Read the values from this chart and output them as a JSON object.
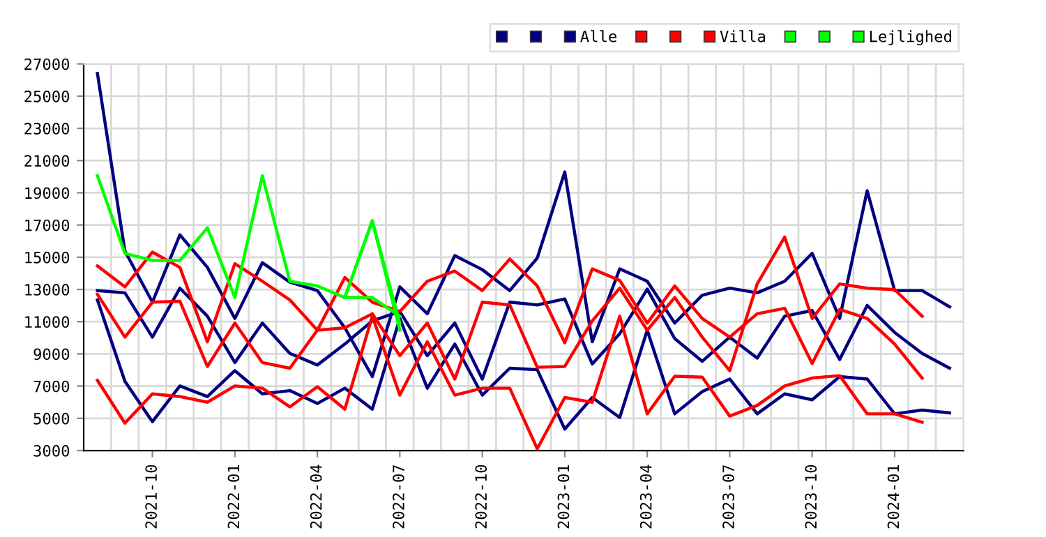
{
  "chart_data": {
    "type": "line",
    "categories": [
      null,
      null,
      "2021-10",
      null,
      null,
      "2022-01",
      null,
      null,
      "2022-04",
      null,
      null,
      "2022-07",
      null,
      null,
      "2022-10",
      null,
      null,
      "2023-01",
      null,
      null,
      "2023-04",
      null,
      null,
      "2023-07",
      null,
      null,
      "2023-10",
      null,
      null,
      "2024-01",
      null,
      null
    ],
    "series": [
      {
        "color": "#000080",
        "values": [
          26410,
          15380,
          12210,
          16390,
          14370,
          11200,
          14660,
          13450,
          12930,
          10620,
          7590,
          13160,
          11490,
          15100,
          14230,
          12930,
          14950,
          20290,
          9750,
          14280,
          13510,
          10910,
          12640,
          13080,
          12790,
          13510,
          15240,
          11200,
          19130,
          12930,
          12930,
          11920
        ]
      },
      {
        "color": "#000080",
        "values": [
          12930,
          12790,
          10040,
          13080,
          11340,
          8460,
          10910,
          9030,
          8310,
          9610,
          11050,
          11630,
          8890,
          10910,
          7440,
          12210,
          12040,
          12410,
          8370,
          10250,
          13020,
          9950,
          8540,
          10040,
          8740,
          11340,
          11690,
          8650,
          12010,
          10330,
          9030,
          8110
        ]
      },
      {
        "name": "Alle",
        "color": "#000080",
        "values": [
          12350,
          7300,
          4790,
          7010,
          6350,
          7960,
          6520,
          6720,
          5920,
          6870,
          5570,
          11200,
          6870,
          9610,
          6440,
          8110,
          8020,
          4330,
          6290,
          5050,
          10470,
          5280,
          6660,
          7440,
          5280,
          6520,
          6150,
          7590,
          7440,
          5280,
          5510,
          5340
        ]
      },
      {
        "color": "#ff0000",
        "values": [
          14460,
          13160,
          15320,
          14370,
          9750,
          14600,
          13510,
          12350,
          10470,
          13740,
          12210,
          11630,
          13510,
          14140,
          12930,
          14890,
          13220,
          9690,
          14280,
          13560,
          10910,
          13220,
          11200,
          10040,
          11490,
          11830,
          8400,
          11760,
          11200,
          9610,
          7500,
          null
        ]
      },
      {
        "color": "#ff0000",
        "values": [
          12700,
          10040,
          12210,
          12270,
          8220,
          10910,
          8460,
          8110,
          10470,
          10620,
          11490,
          8890,
          10910,
          7440,
          12210,
          12040,
          8170,
          8220,
          11050,
          13080,
          10470,
          12500,
          10040,
          7960,
          13340,
          16250,
          11200,
          13340,
          13080,
          12990,
          11340,
          null
        ]
      },
      {
        "name": "Villa",
        "color": "#ff0000",
        "values": [
          7360,
          4700,
          6520,
          6350,
          6000,
          7010,
          6870,
          5710,
          6960,
          5570,
          11340,
          6440,
          9750,
          6440,
          6870,
          6870,
          3110,
          6290,
          6000,
          11340,
          5280,
          7610,
          7560,
          5140,
          5800,
          7010,
          7500,
          7650,
          5280,
          5280,
          4760,
          null
        ]
      },
      {
        "color": "#00ff00",
        "values": [
          null,
          null,
          null,
          null,
          null,
          null,
          null,
          null,
          null,
          12500,
          12500,
          11340,
          null,
          null,
          null,
          null,
          null,
          null,
          null,
          null,
          null,
          null,
          null,
          null,
          null,
          null,
          null,
          null,
          null,
          null,
          null,
          null
        ]
      },
      {
        "color": "#00ff00",
        "values": [
          null,
          null,
          null,
          null,
          null,
          null,
          null,
          null,
          null,
          12500,
          17260,
          10910,
          null,
          null,
          null,
          null,
          null,
          null,
          null,
          null,
          null,
          null,
          null,
          null,
          null,
          null,
          null,
          null,
          null,
          null,
          null,
          null
        ]
      },
      {
        "name": "Lejlighed",
        "color": "#00ff00",
        "values": [
          20060,
          15240,
          14800,
          14800,
          16830,
          12500,
          20060,
          13510,
          13220,
          12500,
          17260,
          10470,
          null,
          null,
          null,
          null,
          null,
          null,
          null,
          null,
          null,
          null,
          null,
          null,
          null,
          null,
          null,
          null,
          null,
          null,
          null,
          null
        ]
      }
    ],
    "ylim": [
      3000,
      27000
    ],
    "yticks": [
      3000,
      5000,
      7000,
      9000,
      11000,
      13000,
      15000,
      17000,
      19000,
      21000,
      23000,
      25000,
      27000
    ],
    "grid": true,
    "legend": "top right",
    "marker": "none",
    "line_style": "solid"
  }
}
